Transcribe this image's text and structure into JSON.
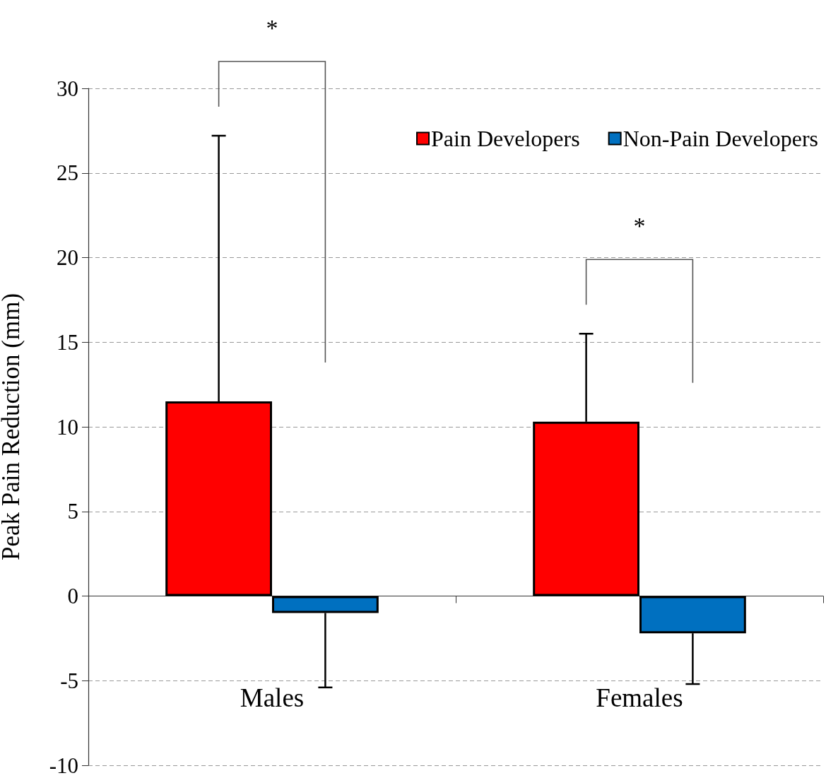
{
  "chart_data": {
    "type": "bar",
    "ylabel": "Peak Pain Reduction (mm)",
    "categories": [
      "Males",
      "Females"
    ],
    "series": [
      {
        "name": "Pain Developers",
        "color": "#ff0000",
        "values": [
          11.5,
          10.3
        ],
        "errors": [
          [
            11.5,
            27.2
          ],
          [
            10.3,
            15.5
          ]
        ]
      },
      {
        "name": "Non-Pain Developers",
        "color": "#0070c0",
        "values": [
          -1.0,
          -2.2
        ],
        "errors": [
          [
            -5.4,
            -1.0
          ],
          [
            -5.2,
            -2.2
          ]
        ]
      }
    ],
    "ylim": [
      -10,
      30
    ],
    "yticks": [
      -10,
      -5,
      0,
      5,
      10,
      15,
      20,
      25,
      30
    ],
    "grid": "y",
    "legend": "top right",
    "annotations": [
      "*",
      "*"
    ]
  }
}
